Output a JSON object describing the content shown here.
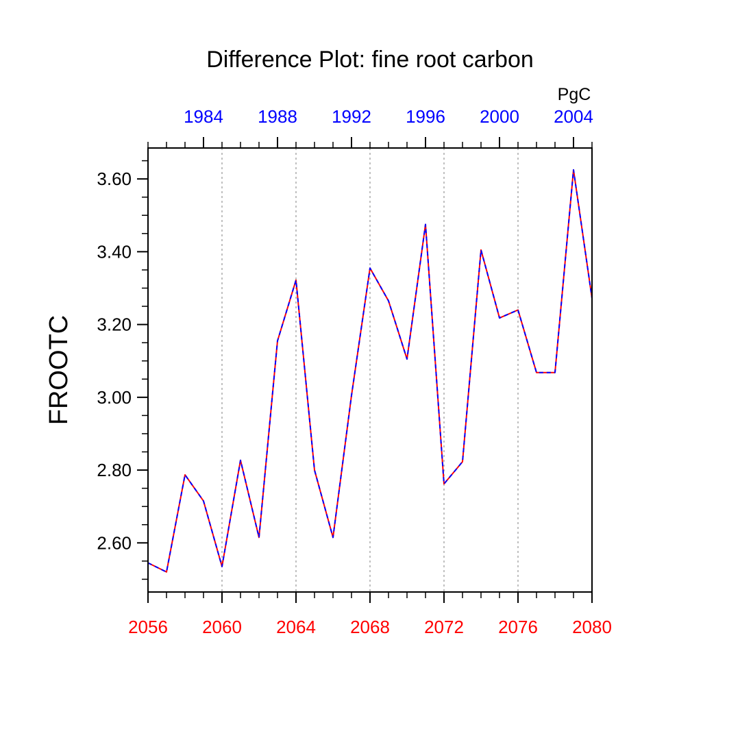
{
  "chart_data": {
    "type": "line",
    "title": "Difference Plot: fine root carbon",
    "ylabel": "FROOTC",
    "units": "PgC",
    "xlim": [
      2056,
      2080
    ],
    "xlim_top": [
      1981,
      2005
    ],
    "ylim": [
      2.465,
      3.685
    ],
    "x_ticks": [
      "2056",
      "2060",
      "2064",
      "2068",
      "2072",
      "2076",
      "2080"
    ],
    "x_top_ticks": [
      "1984",
      "1988",
      "1992",
      "1996",
      "2000",
      "2004"
    ],
    "y_ticks": [
      "2.60",
      "2.80",
      "3.00",
      "3.20",
      "3.40",
      "3.60"
    ],
    "y_tick_values": [
      2.6,
      2.8,
      3.0,
      3.2,
      3.4,
      3.6
    ],
    "grid": "vertical dotted at major bottom ticks",
    "colors": {
      "bottom_series": "#ff0000",
      "top_series": "#0000ff",
      "bottom_axis_labels": "#ff0000",
      "top_axis_labels": "#0000ff",
      "grid": "#aaaaaa"
    },
    "series": [
      {
        "axis": "bottom",
        "color": "#ff0000",
        "x": [
          2056,
          2057,
          2058,
          2059,
          2060,
          2061,
          2062,
          2063,
          2064,
          2065,
          2066,
          2067,
          2068,
          2069,
          2070,
          2071,
          2072,
          2073,
          2074,
          2075,
          2076,
          2077,
          2078,
          2079,
          2080
        ],
        "values": [
          2.545,
          2.52,
          2.787,
          2.715,
          2.535,
          2.827,
          2.615,
          3.155,
          3.322,
          2.8,
          2.615,
          3.005,
          3.355,
          3.265,
          3.105,
          3.475,
          2.762,
          2.823,
          3.405,
          3.218,
          3.24,
          3.068,
          3.068,
          3.625,
          3.272
        ]
      },
      {
        "axis": "top",
        "color": "#0000ff",
        "x": [
          1981,
          1982,
          1983,
          1984,
          1985,
          1986,
          1987,
          1988,
          1989,
          1990,
          1991,
          1992,
          1993,
          1994,
          1995,
          1996,
          1997,
          1998,
          1999,
          2000,
          2001,
          2002,
          2003,
          2004,
          2005
        ],
        "values": [
          2.545,
          2.52,
          2.787,
          2.715,
          2.535,
          2.827,
          2.615,
          3.155,
          3.322,
          2.8,
          2.615,
          3.005,
          3.355,
          3.265,
          3.105,
          3.475,
          2.762,
          2.823,
          3.405,
          3.218,
          3.24,
          3.068,
          3.068,
          3.625,
          3.272
        ]
      }
    ]
  }
}
